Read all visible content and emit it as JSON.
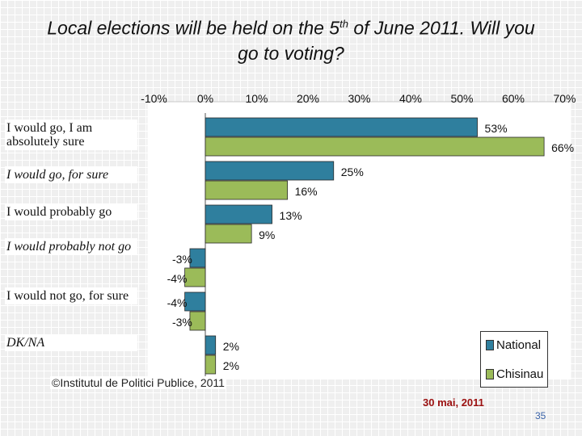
{
  "title": {
    "line1_pre": "Local elections will be held on the 5",
    "line1_sup": "th",
    "line1_post": " of June 2011. Will you",
    "line2": "go to voting?"
  },
  "chart_data": {
    "type": "bar",
    "orientation": "horizontal",
    "xlim": [
      -10,
      70
    ],
    "x_ticks": [
      "-10%",
      "0%",
      "10%",
      "20%",
      "30%",
      "40%",
      "50%",
      "60%",
      "70%"
    ],
    "categories": [
      "I would go, I am absolutely sure",
      "I would go, for sure",
      "I would probably go",
      "I would probably not go",
      "I would not go, for sure",
      "DK/NA"
    ],
    "series": [
      {
        "name": "National",
        "color": "#2f7f9e",
        "values": [
          53,
          25,
          13,
          -3,
          -4,
          2
        ],
        "labels": [
          "53%",
          "25%",
          "13%",
          "-3%",
          "-4%",
          "2%"
        ]
      },
      {
        "name": "Chisinau",
        "color": "#9bbb59",
        "values": [
          66,
          16,
          9,
          -4,
          -3,
          2
        ],
        "labels": [
          "66%",
          "16%",
          "9%",
          "-4%",
          "-3%",
          "2%"
        ]
      }
    ],
    "legend_position": "bottom-right"
  },
  "credit": "©Institutul de Politici Publice, 2011",
  "date": "30 mai, 2011",
  "page_number": "35"
}
